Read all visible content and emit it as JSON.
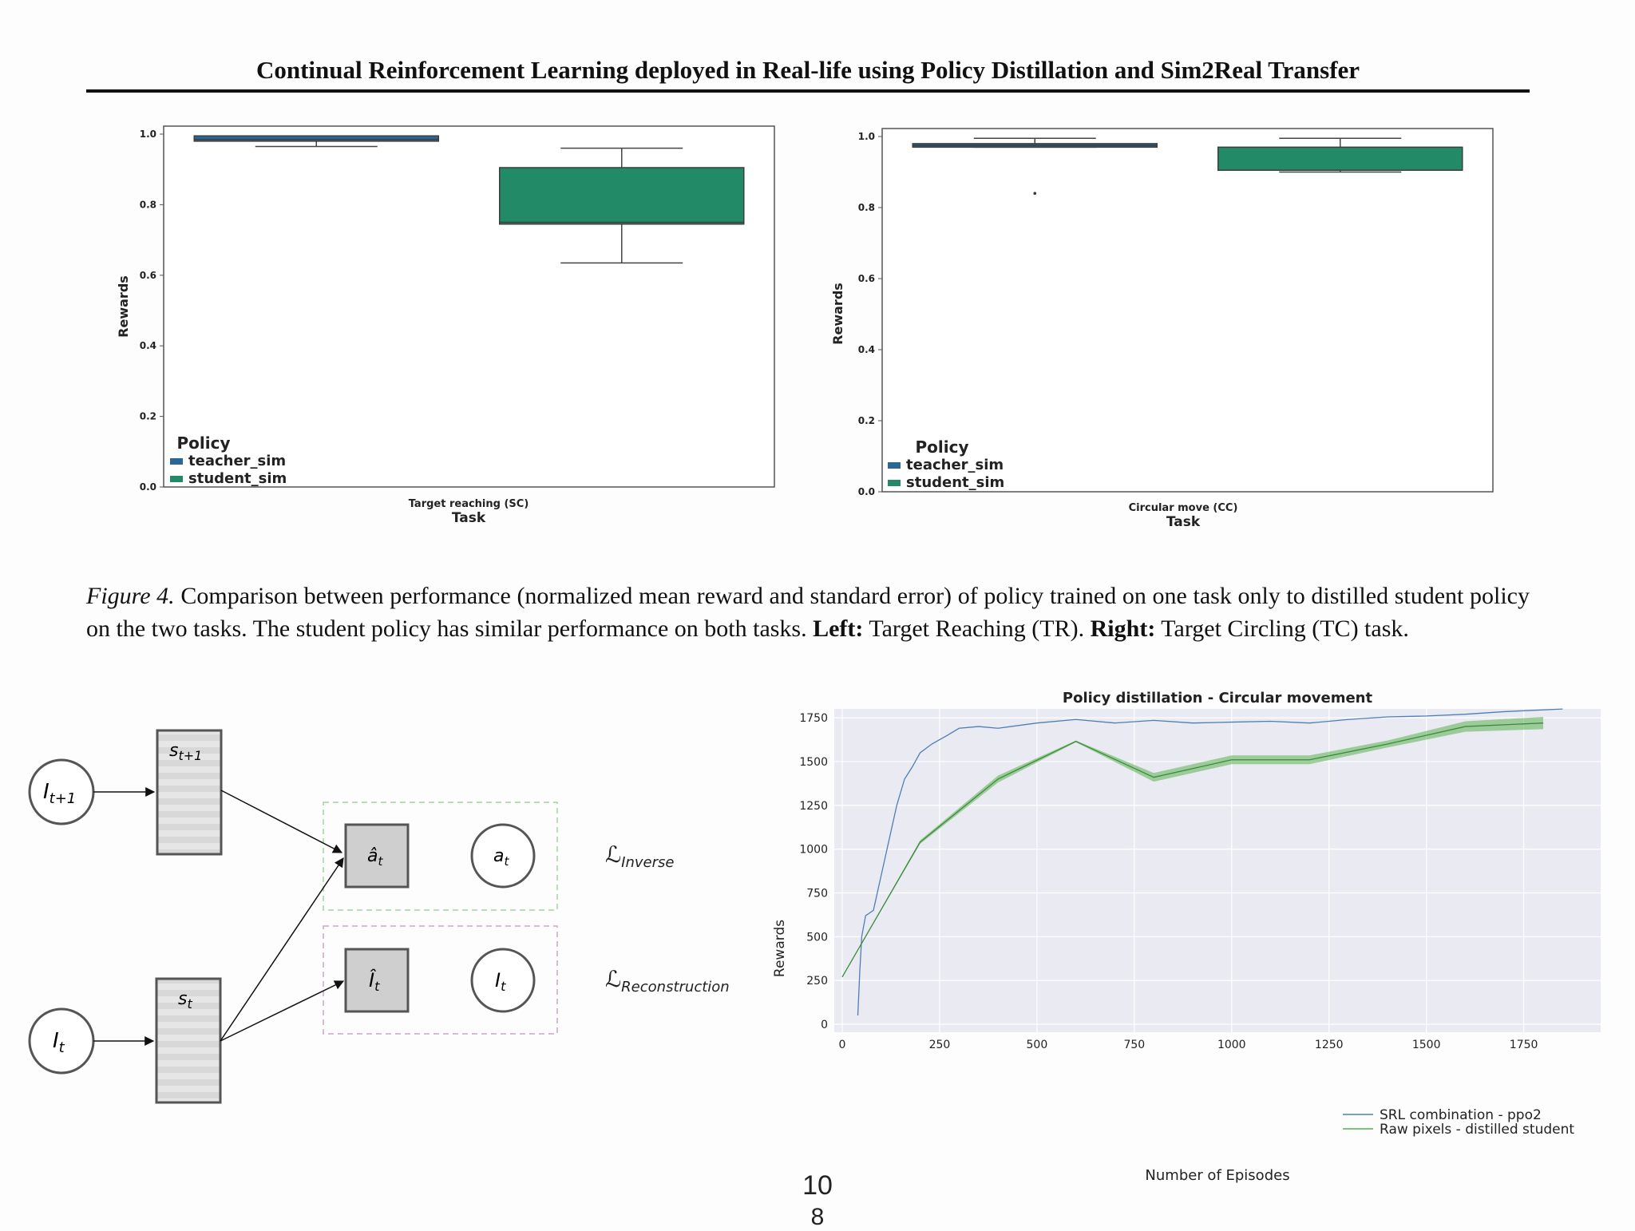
{
  "header": {
    "title": "Continual Reinforcement Learning deployed in Real-life using Policy Distillation and Sim2Real Transfer"
  },
  "figure4": {
    "label": "Figure 4.",
    "text": "Comparison between performance (normalized mean reward and standard error) of policy trained on one task only to distilled student policy on the two tasks. The student policy has similar performance on both tasks.",
    "left_label": "Left:",
    "left_text": "Target Reaching (TR).",
    "right_label": "Right:",
    "right_text": "Target Circling (TC) task."
  },
  "colors": {
    "teacher": "#2a6797",
    "student": "#228a67",
    "ppo2": "#4c7fb6",
    "distilled": "#5ab04f"
  },
  "chart_data": [
    {
      "type": "box",
      "ylabel": "Rewards",
      "xlabel": "Task",
      "category": "Target reaching (SC)",
      "ylim": [
        0,
        1.0
      ],
      "yticks": [
        "0.0",
        "0.2",
        "0.4",
        "0.6",
        "0.8",
        "1.0"
      ],
      "legend_title": "Policy",
      "legend_position": "lower-left",
      "series": [
        {
          "name": "teacher_sim",
          "q1": 0.98,
          "median": 0.985,
          "q3": 0.995,
          "whisker_low": 0.965,
          "whisker_high": 0.995
        },
        {
          "name": "student_sim",
          "q1": 0.745,
          "median": 0.75,
          "q3": 0.905,
          "whisker_low": 0.635,
          "whisker_high": 0.96
        }
      ]
    },
    {
      "type": "box",
      "ylabel": "Rewards",
      "xlabel": "Task",
      "category": "Circular move (CC)",
      "ylim": [
        0,
        1.0
      ],
      "yticks": [
        "0.0",
        "0.2",
        "0.4",
        "0.6",
        "0.8",
        "1.0"
      ],
      "legend_title": "Policy",
      "legend_position": "lower-left",
      "series": [
        {
          "name": "teacher_sim",
          "q1": 0.97,
          "median": 0.975,
          "q3": 0.98,
          "whisker_low": 0.97,
          "whisker_high": 0.995,
          "outliers": [
            0.84
          ]
        },
        {
          "name": "student_sim",
          "q1": 0.905,
          "median": 0.905,
          "q3": 0.97,
          "whisker_low": 0.9,
          "whisker_high": 0.995
        }
      ]
    },
    {
      "type": "line",
      "title": "Policy distillation - Circular movement",
      "xlabel": "Number of Episodes",
      "ylabel": "Rewards",
      "xlim": [
        0,
        1850
      ],
      "ylim": [
        0,
        1800
      ],
      "xticks": [
        0,
        250,
        500,
        750,
        1000,
        1250,
        1500,
        1750
      ],
      "yticks": [
        0,
        250,
        500,
        750,
        1000,
        1250,
        1500,
        1750
      ],
      "legend_position": "lower-right",
      "series": [
        {
          "name": "SRL combination - ppo2",
          "x": [
            40,
            45,
            50,
            60,
            80,
            100,
            120,
            140,
            160,
            180,
            200,
            230,
            270,
            300,
            350,
            400,
            500,
            600,
            700,
            800,
            900,
            1000,
            1100,
            1200,
            1300,
            1400,
            1500,
            1600,
            1700,
            1750,
            1850
          ],
          "y": [
            50,
            300,
            500,
            620,
            650,
            850,
            1050,
            1250,
            1400,
            1470,
            1550,
            1600,
            1650,
            1690,
            1700,
            1690,
            1720,
            1740,
            1720,
            1735,
            1720,
            1725,
            1730,
            1720,
            1740,
            1755,
            1760,
            1770,
            1785,
            1790,
            1800
          ]
        },
        {
          "name": "Raw pixels - distilled student",
          "x": [
            0,
            200,
            400,
            600,
            800,
            1000,
            1200,
            1400,
            1600,
            1800
          ],
          "y": [
            270,
            1040,
            1400,
            1615,
            1410,
            1510,
            1510,
            1600,
            1700,
            1720
          ],
          "band": [
            0,
            10,
            20,
            5,
            25,
            25,
            25,
            20,
            30,
            35
          ]
        }
      ]
    }
  ],
  "diagram": {
    "node_it1": "I",
    "node_it1_sub": "t+1",
    "node_st1": "s",
    "node_st1_sub": "t+1",
    "node_it": "I",
    "node_it_sub": "t",
    "node_st": "s",
    "node_st_sub": "t",
    "node_ahat": "â",
    "node_ahat_sub": "t",
    "node_at": "a",
    "node_at_sub": "t",
    "node_ihat": "Î",
    "node_ihat_sub": "t",
    "node_it2": "I",
    "node_it2_sub": "t",
    "loss_inverse": "ℒ",
    "loss_inverse_sub": "Inverse",
    "loss_recon": "ℒ",
    "loss_recon_sub": "Reconstruction"
  },
  "page_numbers": {
    "first": "10",
    "second": "8"
  }
}
